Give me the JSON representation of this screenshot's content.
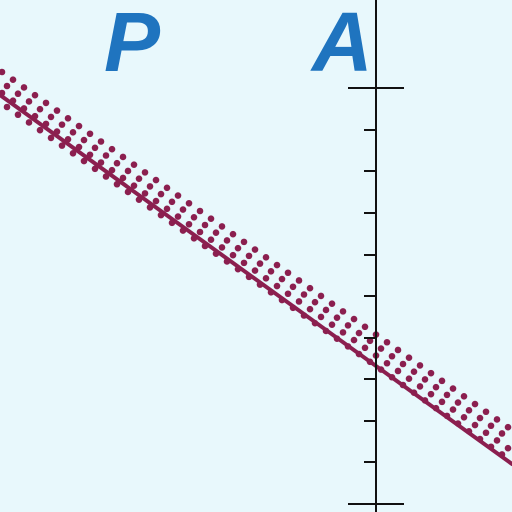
{
  "map": {
    "labels": {
      "left_letter": "P",
      "right_letter": "A"
    },
    "colors": {
      "background": "#e8f8fc",
      "label": "#1f74bf",
      "boundary": "#8b1f4f",
      "graticule": "#111111"
    }
  }
}
